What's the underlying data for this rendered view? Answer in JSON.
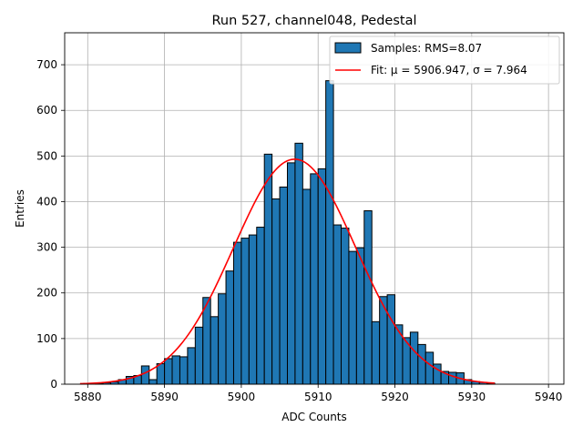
{
  "chart_data": {
    "type": "bar",
    "title": "Run 527, channel048, Pedestal",
    "xlabel": "ADC Counts",
    "ylabel": "Entries",
    "xlim": [
      5877,
      5942
    ],
    "ylim": [
      0,
      770
    ],
    "xticks": [
      5880,
      5890,
      5900,
      5910,
      5920,
      5930,
      5940
    ],
    "yticks": [
      0,
      100,
      200,
      300,
      400,
      500,
      600,
      700
    ],
    "grid": true,
    "legend_position": "top-right",
    "bin_width": 1,
    "series": [
      {
        "name": "Samples: RMS=8.07",
        "kind": "histogram",
        "color": "#1f77b4",
        "edgecolor": "#000000",
        "bins": [
          5881,
          5882,
          5883,
          5884,
          5885,
          5886,
          5887,
          5888,
          5889,
          5890,
          5891,
          5892,
          5893,
          5894,
          5895,
          5896,
          5897,
          5898,
          5899,
          5900,
          5901,
          5902,
          5903,
          5904,
          5905,
          5906,
          5907,
          5908,
          5909,
          5910,
          5911,
          5912,
          5913,
          5914,
          5915,
          5916,
          5917,
          5918,
          5919,
          5920,
          5921,
          5922,
          5923,
          5924,
          5925,
          5926,
          5927,
          5928,
          5929,
          5930,
          5931,
          5932
        ],
        "values": [
          2,
          3,
          5,
          10,
          17,
          19,
          40,
          10,
          45,
          56,
          62,
          60,
          80,
          125,
          190,
          148,
          198,
          248,
          311,
          320,
          327,
          344,
          504,
          406,
          432,
          485,
          528,
          427,
          461,
          472,
          665,
          349,
          342,
          291,
          299,
          380,
          137,
          192,
          196,
          130,
          102,
          114,
          87,
          70,
          44,
          28,
          26,
          25,
          10,
          6,
          4,
          2
        ]
      },
      {
        "name": "Fit: μ = 5906.947, σ = 7.964",
        "kind": "gaussian_fit",
        "color": "#ff0000",
        "mu": 5906.947,
        "sigma": 7.964,
        "amplitude": 493,
        "x_range": [
          5879,
          5933
        ]
      }
    ]
  }
}
